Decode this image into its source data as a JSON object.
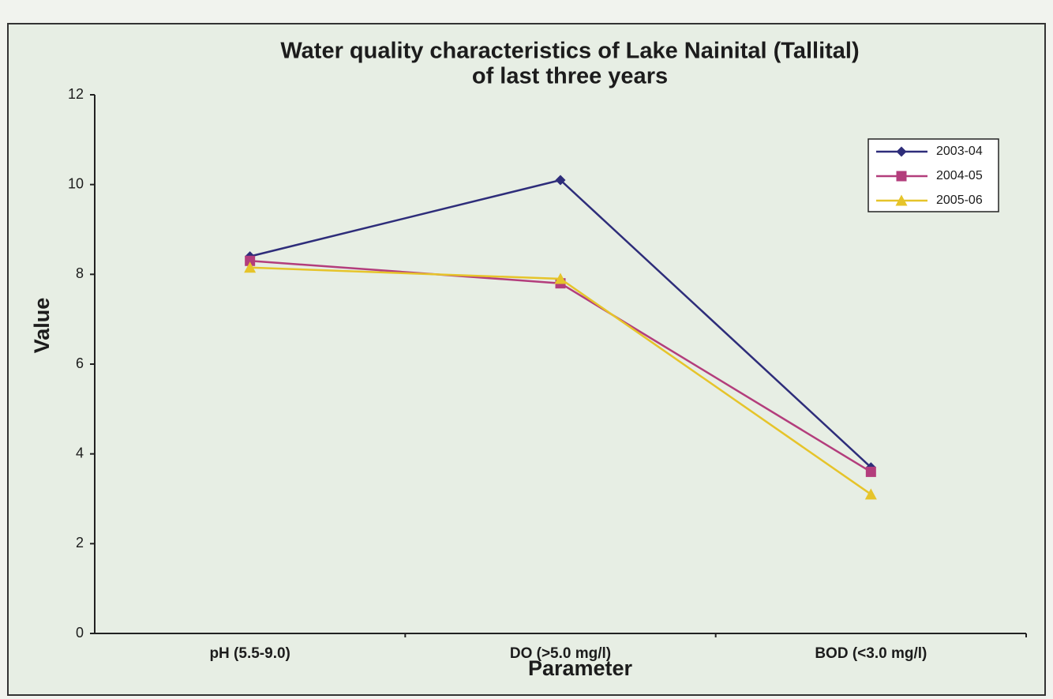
{
  "chart_data": {
    "type": "line",
    "title": [
      "Water quality characteristics of Lake Nainital (Tallital)",
      "of last three years"
    ],
    "x_label": "Parameter",
    "y_label": "Value",
    "categories": [
      "pH (5.5-9.0)",
      "DO (>5.0 mg/l)",
      "BOD (<3.0 mg/l)"
    ],
    "series": [
      {
        "name": "2003-04",
        "color": "#2e2d7a",
        "marker": "diamond",
        "values": [
          8.4,
          10.1,
          3.7
        ]
      },
      {
        "name": "2004-05",
        "color": "#b33d7c",
        "marker": "square",
        "values": [
          8.3,
          7.8,
          3.6
        ]
      },
      {
        "name": "2005-06",
        "color": "#e6c42a",
        "marker": "triangle",
        "values": [
          8.15,
          7.9,
          3.1
        ]
      }
    ],
    "ylim": [
      0,
      12
    ],
    "yticks": [
      0,
      2,
      4,
      6,
      8,
      10,
      12
    ],
    "legend": "upper right",
    "grid": false
  }
}
